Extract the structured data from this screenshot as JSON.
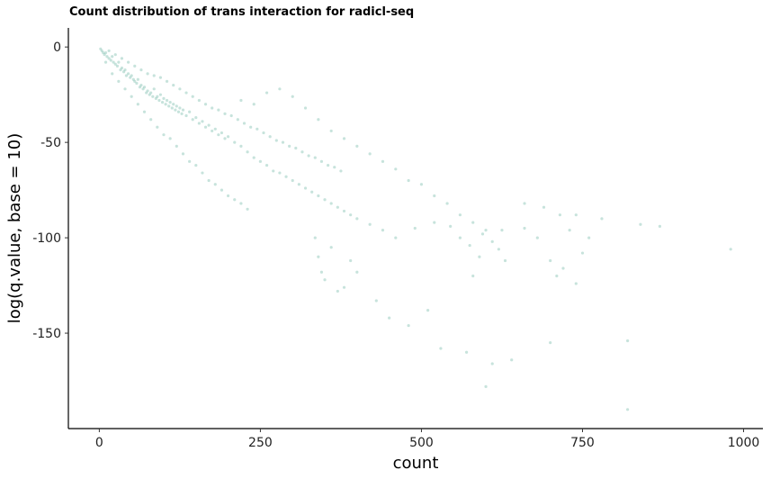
{
  "chart_data": {
    "type": "scatter",
    "title": "Count distribution of trans interaction for radicl-seq",
    "xlabel": "count",
    "ylabel": "log(q.value, base = 10)",
    "xlim": [
      -48,
      1030
    ],
    "ylim": [
      -200,
      10
    ],
    "xticks": [
      0,
      250,
      500,
      750,
      1000
    ],
    "xtick_labels": [
      "0",
      "250",
      "500",
      "750",
      "1000"
    ],
    "yticks": [
      0,
      -50,
      -100,
      -150
    ],
    "ytick_labels": [
      "0",
      "-50",
      "-100",
      "-150"
    ],
    "grid": false,
    "legend": "none",
    "point_color": "#5fb09a",
    "point_opacity": 0.35,
    "series": [
      {
        "points": [
          [
            2,
            -1
          ],
          [
            4,
            -2
          ],
          [
            6,
            -3
          ],
          [
            8,
            -4
          ],
          [
            10,
            -3
          ],
          [
            12,
            -5
          ],
          [
            15,
            -6
          ],
          [
            18,
            -7
          ],
          [
            20,
            -5
          ],
          [
            22,
            -8
          ],
          [
            25,
            -9
          ],
          [
            28,
            -10
          ],
          [
            30,
            -8
          ],
          [
            33,
            -12
          ],
          [
            35,
            -11
          ],
          [
            38,
            -13
          ],
          [
            40,
            -12
          ],
          [
            42,
            -15
          ],
          [
            45,
            -14
          ],
          [
            48,
            -16
          ],
          [
            50,
            -15
          ],
          [
            53,
            -17
          ],
          [
            55,
            -18
          ],
          [
            58,
            -19
          ],
          [
            60,
            -17
          ],
          [
            63,
            -21
          ],
          [
            65,
            -20
          ],
          [
            68,
            -22
          ],
          [
            70,
            -21
          ],
          [
            73,
            -24
          ],
          [
            75,
            -23
          ],
          [
            78,
            -25
          ],
          [
            80,
            -24
          ],
          [
            83,
            -26
          ],
          [
            85,
            -22
          ],
          [
            88,
            -27
          ],
          [
            90,
            -26
          ],
          [
            93,
            -28
          ],
          [
            95,
            -25
          ],
          [
            98,
            -29
          ],
          [
            100,
            -27
          ],
          [
            103,
            -30
          ],
          [
            105,
            -28
          ],
          [
            108,
            -31
          ],
          [
            110,
            -29
          ],
          [
            113,
            -32
          ],
          [
            115,
            -30
          ],
          [
            118,
            -33
          ],
          [
            120,
            -31
          ],
          [
            123,
            -34
          ],
          [
            125,
            -32
          ],
          [
            128,
            -35
          ],
          [
            130,
            -33
          ],
          [
            135,
            -36
          ],
          [
            140,
            -34
          ],
          [
            145,
            -38
          ],
          [
            150,
            -37
          ],
          [
            155,
            -40
          ],
          [
            160,
            -39
          ],
          [
            165,
            -42
          ],
          [
            170,
            -41
          ],
          [
            175,
            -44
          ],
          [
            180,
            -43
          ],
          [
            185,
            -46
          ],
          [
            190,
            -45
          ],
          [
            195,
            -48
          ],
          [
            200,
            -47
          ],
          [
            210,
            -50
          ],
          [
            220,
            -52
          ],
          [
            230,
            -55
          ],
          [
            240,
            -58
          ],
          [
            250,
            -60
          ],
          [
            260,
            -62
          ],
          [
            270,
            -65
          ],
          [
            280,
            -66
          ],
          [
            290,
            -68
          ],
          [
            300,
            -70
          ],
          [
            310,
            -72
          ],
          [
            320,
            -74
          ],
          [
            330,
            -76
          ],
          [
            340,
            -78
          ],
          [
            350,
            -80
          ],
          [
            360,
            -82
          ],
          [
            370,
            -84
          ],
          [
            380,
            -86
          ],
          [
            390,
            -88
          ],
          [
            400,
            -90
          ],
          [
            420,
            -93
          ],
          [
            440,
            -96
          ],
          [
            460,
            -100
          ],
          [
            10,
            -8
          ],
          [
            20,
            -14
          ],
          [
            30,
            -18
          ],
          [
            40,
            -22
          ],
          [
            50,
            -26
          ],
          [
            60,
            -30
          ],
          [
            70,
            -34
          ],
          [
            80,
            -38
          ],
          [
            90,
            -42
          ],
          [
            100,
            -46
          ],
          [
            110,
            -48
          ],
          [
            120,
            -52
          ],
          [
            130,
            -56
          ],
          [
            140,
            -60
          ],
          [
            150,
            -62
          ],
          [
            160,
            -66
          ],
          [
            170,
            -70
          ],
          [
            180,
            -72
          ],
          [
            190,
            -75
          ],
          [
            200,
            -78
          ],
          [
            210,
            -80
          ],
          [
            220,
            -82
          ],
          [
            230,
            -85
          ],
          [
            15,
            -2
          ],
          [
            25,
            -4
          ],
          [
            35,
            -6
          ],
          [
            45,
            -8
          ],
          [
            55,
            -10
          ],
          [
            65,
            -12
          ],
          [
            75,
            -14
          ],
          [
            85,
            -15
          ],
          [
            95,
            -16
          ],
          [
            105,
            -18
          ],
          [
            115,
            -20
          ],
          [
            125,
            -22
          ],
          [
            135,
            -24
          ],
          [
            145,
            -26
          ],
          [
            155,
            -28
          ],
          [
            165,
            -30
          ],
          [
            175,
            -32
          ],
          [
            185,
            -33
          ],
          [
            195,
            -35
          ],
          [
            205,
            -36
          ],
          [
            215,
            -38
          ],
          [
            225,
            -40
          ],
          [
            235,
            -42
          ],
          [
            245,
            -43
          ],
          [
            255,
            -45
          ],
          [
            265,
            -47
          ],
          [
            275,
            -49
          ],
          [
            285,
            -50
          ],
          [
            295,
            -52
          ],
          [
            305,
            -53
          ],
          [
            315,
            -55
          ],
          [
            325,
            -57
          ],
          [
            335,
            -58
          ],
          [
            345,
            -60
          ],
          [
            355,
            -62
          ],
          [
            365,
            -63
          ],
          [
            375,
            -65
          ],
          [
            220,
            -28
          ],
          [
            240,
            -30
          ],
          [
            260,
            -24
          ],
          [
            280,
            -22
          ],
          [
            300,
            -26
          ],
          [
            320,
            -32
          ],
          [
            340,
            -38
          ],
          [
            360,
            -44
          ],
          [
            380,
            -48
          ],
          [
            400,
            -52
          ],
          [
            420,
            -56
          ],
          [
            440,
            -60
          ],
          [
            460,
            -64
          ],
          [
            480,
            -70
          ],
          [
            500,
            -72
          ],
          [
            520,
            -78
          ],
          [
            540,
            -82
          ],
          [
            560,
            -88
          ],
          [
            580,
            -92
          ],
          [
            600,
            -96
          ],
          [
            335,
            -100
          ],
          [
            340,
            -110
          ],
          [
            345,
            -118
          ],
          [
            350,
            -122
          ],
          [
            360,
            -105
          ],
          [
            370,
            -128
          ],
          [
            380,
            -126
          ],
          [
            390,
            -112
          ],
          [
            400,
            -118
          ],
          [
            430,
            -133
          ],
          [
            450,
            -142
          ],
          [
            480,
            -146
          ],
          [
            510,
            -138
          ],
          [
            530,
            -158
          ],
          [
            560,
            -100
          ],
          [
            570,
            -160
          ],
          [
            580,
            -120
          ],
          [
            600,
            -178
          ],
          [
            610,
            -166
          ],
          [
            630,
            -112
          ],
          [
            640,
            -164
          ],
          [
            660,
            -95
          ],
          [
            680,
            -100
          ],
          [
            700,
            -155
          ],
          [
            720,
            -116
          ],
          [
            730,
            -96
          ],
          [
            750,
            -108
          ],
          [
            760,
            -100
          ],
          [
            780,
            -90
          ],
          [
            820,
            -154
          ],
          [
            820,
            -190
          ],
          [
            840,
            -93
          ],
          [
            870,
            -94
          ],
          [
            980,
            -106
          ],
          [
            490,
            -95
          ],
          [
            520,
            -92
          ],
          [
            545,
            -94
          ],
          [
            575,
            -104
          ],
          [
            595,
            -98
          ],
          [
            625,
            -96
          ],
          [
            660,
            -82
          ],
          [
            690,
            -84
          ],
          [
            715,
            -88
          ],
          [
            740,
            -88
          ],
          [
            610,
            -102
          ],
          [
            590,
            -110
          ],
          [
            620,
            -106
          ],
          [
            700,
            -112
          ],
          [
            710,
            -120
          ],
          [
            740,
            -124
          ]
        ]
      }
    ]
  }
}
